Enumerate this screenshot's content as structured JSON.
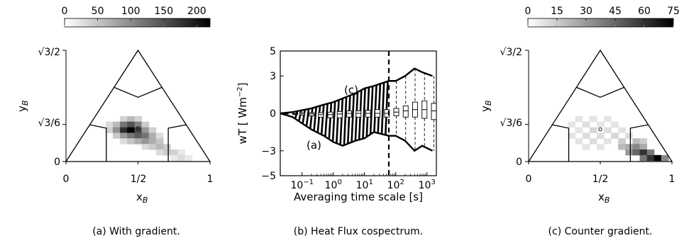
{
  "panels": [
    {
      "caption": "(a)  With gradient.",
      "colorbar_ticks": [
        "0",
        "50",
        "100",
        "150",
        "200"
      ],
      "colorbar_max": 220,
      "y_ticks": [
        "√3/2",
        "√3/6",
        "0"
      ],
      "x_ticks": [
        "0",
        "1/2",
        "1"
      ],
      "xlabel": "x",
      "xlabel_sub": "B",
      "ylabel": "y",
      "ylabel_sub": "B"
    },
    {
      "caption": "(b)  Heat Flux cospectrum.",
      "ylabel": "wT [ Wm",
      "ylabel_sup": "−2",
      "ylabel_end": "]",
      "xlabel": "Averaging time scale [s]",
      "annotation_a": "(a)",
      "annotation_c": "(c)"
    },
    {
      "caption": "(c)  Counter gradient.",
      "colorbar_ticks": [
        "0",
        "15",
        "30",
        "45",
        "60",
        "75"
      ],
      "colorbar_max": 75,
      "y_ticks": [
        "√3/2",
        "√3/6",
        "0"
      ],
      "x_ticks": [
        "0",
        "1/2",
        "1"
      ],
      "xlabel": "x",
      "xlabel_sub": "B",
      "ylabel": "y",
      "ylabel_sub": "B"
    }
  ],
  "chart_data": [
    {
      "type": "heatmap",
      "title": "With gradient",
      "domain": "barycentric triangle",
      "xlabel": "xB",
      "ylabel": "yB",
      "xlim": [
        0,
        1
      ],
      "ylim": [
        0,
        0.866
      ],
      "colorbar": {
        "min": 0,
        "max": 220,
        "ticks": [
          0,
          50,
          100,
          150,
          200
        ],
        "colormap": "white-to-black"
      },
      "cell_size": [
        0.05,
        0.0433
      ],
      "cells": [
        [
          0.4,
          0.332,
          40
        ],
        [
          0.45,
          0.332,
          60
        ],
        [
          0.5,
          0.332,
          40
        ],
        [
          0.3,
          0.289,
          30
        ],
        [
          0.35,
          0.289,
          60
        ],
        [
          0.4,
          0.289,
          120
        ],
        [
          0.45,
          0.289,
          150
        ],
        [
          0.5,
          0.289,
          110
        ],
        [
          0.55,
          0.289,
          45
        ],
        [
          0.3,
          0.245,
          40
        ],
        [
          0.35,
          0.245,
          95
        ],
        [
          0.4,
          0.245,
          180
        ],
        [
          0.45,
          0.245,
          220
        ],
        [
          0.5,
          0.245,
          160
        ],
        [
          0.55,
          0.245,
          90
        ],
        [
          0.6,
          0.245,
          40
        ],
        [
          0.35,
          0.202,
          45
        ],
        [
          0.4,
          0.202,
          90
        ],
        [
          0.45,
          0.202,
          120
        ],
        [
          0.5,
          0.202,
          140
        ],
        [
          0.55,
          0.202,
          120
        ],
        [
          0.6,
          0.202,
          70
        ],
        [
          0.65,
          0.202,
          30
        ],
        [
          0.4,
          0.159,
          30
        ],
        [
          0.45,
          0.159,
          50
        ],
        [
          0.5,
          0.159,
          70
        ],
        [
          0.55,
          0.159,
          90
        ],
        [
          0.6,
          0.159,
          70
        ],
        [
          0.65,
          0.159,
          50
        ],
        [
          0.55,
          0.115,
          30
        ],
        [
          0.6,
          0.115,
          45
        ],
        [
          0.65,
          0.115,
          60
        ],
        [
          0.7,
          0.115,
          45
        ],
        [
          0.65,
          0.072,
          30
        ],
        [
          0.7,
          0.072,
          45
        ],
        [
          0.75,
          0.072,
          40
        ],
        [
          0.8,
          0.072,
          20
        ],
        [
          0.75,
          0.029,
          20
        ],
        [
          0.8,
          0.029,
          30
        ],
        [
          0.85,
          0.029,
          20
        ]
      ],
      "marker": [
        0.5,
        0.26
      ],
      "region_boundaries": [
        [
          [
            0.333,
            0.577
          ],
          [
            0.5,
            0.5
          ],
          [
            0.667,
            0.577
          ]
        ],
        [
          [
            0.5,
            0.5
          ],
          [
            0.5,
            0.0
          ]
        ],
        [
          [
            0.333,
            0.289
          ],
          [
            0.5,
            0.5
          ]
        ],
        [
          [
            0.667,
            0.289
          ],
          [
            0.5,
            0.5
          ]
        ]
      ]
    },
    {
      "type": "line",
      "title": "Heat Flux cospectrum",
      "xlabel": "Averaging time scale [s]",
      "ylabel": "wT [ Wm−2 ]",
      "xscale": "log",
      "xlim": [
        0.02,
        2000
      ],
      "ylim": [
        -5,
        5
      ],
      "x_ticks": [
        "10^-1",
        "10^0",
        "10^1",
        "10^2",
        "10^3"
      ],
      "y_ticks": [
        5,
        3,
        0,
        -3,
        -5
      ],
      "vertical_line_x": 60,
      "upper_envelope": {
        "x": [
          0.02,
          0.05,
          0.1,
          0.2,
          0.5,
          1,
          2,
          5,
          10,
          20,
          60,
          100,
          200,
          400,
          700,
          1500
        ],
        "y": [
          0.0,
          0.1,
          0.25,
          0.4,
          0.7,
          0.9,
          1.2,
          1.6,
          2.0,
          2.2,
          2.6,
          2.6,
          3.0,
          3.6,
          3.3,
          3.0
        ]
      },
      "lower_envelope": {
        "x": [
          0.02,
          0.05,
          0.1,
          0.2,
          0.5,
          1,
          2,
          5,
          10,
          20,
          60,
          100,
          200,
          400,
          700,
          1500
        ],
        "y": [
          0.0,
          -0.3,
          -0.8,
          -1.3,
          -1.8,
          -2.3,
          -2.6,
          -2.2,
          -2.0,
          -1.5,
          -1.8,
          -1.8,
          -2.2,
          -3.0,
          -2.6,
          -3.0
        ]
      },
      "boxes": [
        {
          "x": 0.03,
          "q1": -0.05,
          "median": 0.0,
          "q3": 0.05,
          "lo": -0.1,
          "hi": 0.1
        },
        {
          "x": 0.06,
          "q1": -0.1,
          "median": -0.05,
          "q3": 0.0,
          "lo": -0.3,
          "hi": 0.1
        },
        {
          "x": 0.1,
          "q1": -0.15,
          "median": -0.05,
          "q3": 0.05,
          "lo": -0.8,
          "hi": 0.25
        },
        {
          "x": 0.2,
          "q1": -0.2,
          "median": -0.05,
          "q3": 0.05,
          "lo": -1.3,
          "hi": 0.4
        },
        {
          "x": 0.4,
          "q1": -0.3,
          "median": -0.1,
          "q3": 0.05,
          "lo": -1.8,
          "hi": 0.6
        },
        {
          "x": 0.8,
          "q1": -0.35,
          "median": -0.1,
          "q3": 0.1,
          "lo": -2.2,
          "hi": 0.85
        },
        {
          "x": 1.6,
          "q1": -0.35,
          "median": -0.05,
          "q3": 0.15,
          "lo": -2.6,
          "hi": 1.1
        },
        {
          "x": 3.2,
          "q1": -0.3,
          "median": 0.0,
          "q3": 0.2,
          "lo": -2.3,
          "hi": 1.5
        },
        {
          "x": 6.4,
          "q1": -0.3,
          "median": 0.0,
          "q3": 0.2,
          "lo": -2.1,
          "hi": 1.9
        },
        {
          "x": 13,
          "q1": -0.3,
          "median": 0.0,
          "q3": 0.25,
          "lo": -1.8,
          "hi": 2.1
        },
        {
          "x": 26,
          "q1": -0.3,
          "median": 0.0,
          "q3": 0.3,
          "lo": -1.6,
          "hi": 2.3
        },
        {
          "x": 52,
          "q1": -0.3,
          "median": 0.0,
          "q3": 0.3,
          "lo": -1.7,
          "hi": 2.5
        },
        {
          "x": 104,
          "q1": -0.2,
          "median": 0.1,
          "q3": 0.4,
          "lo": -1.8,
          "hi": 2.6
        },
        {
          "x": 208,
          "q1": -0.3,
          "median": 0.2,
          "q3": 0.6,
          "lo": -2.2,
          "hi": 3.0
        },
        {
          "x": 416,
          "q1": -0.3,
          "median": 0.3,
          "q3": 0.9,
          "lo": -3.0,
          "hi": 3.6
        },
        {
          "x": 832,
          "q1": -0.4,
          "median": 0.3,
          "q3": 1.0,
          "lo": -2.6,
          "hi": 3.3
        },
        {
          "x": 1664,
          "q1": -0.5,
          "median": 0.2,
          "q3": 0.8,
          "lo": -3.0,
          "hi": 3.0
        }
      ]
    },
    {
      "type": "heatmap",
      "title": "Counter gradient",
      "domain": "barycentric triangle",
      "xlabel": "xB",
      "ylabel": "yB",
      "xlim": [
        0,
        1
      ],
      "ylim": [
        0,
        0.866
      ],
      "colorbar": {
        "min": 0,
        "max": 75,
        "ticks": [
          0,
          15,
          30,
          45,
          60,
          75
        ],
        "colormap": "white-to-black"
      },
      "cell_size": [
        0.05,
        0.0433
      ],
      "cells": [
        [
          0.35,
          0.332,
          8
        ],
        [
          0.45,
          0.332,
          8
        ],
        [
          0.55,
          0.332,
          8
        ],
        [
          0.3,
          0.289,
          8
        ],
        [
          0.4,
          0.289,
          10
        ],
        [
          0.5,
          0.289,
          8
        ],
        [
          0.6,
          0.289,
          8
        ],
        [
          0.35,
          0.245,
          8
        ],
        [
          0.45,
          0.245,
          12
        ],
        [
          0.55,
          0.245,
          10
        ],
        [
          0.65,
          0.245,
          8
        ],
        [
          0.3,
          0.202,
          8
        ],
        [
          0.4,
          0.202,
          10
        ],
        [
          0.5,
          0.202,
          10
        ],
        [
          0.6,
          0.202,
          12
        ],
        [
          0.7,
          0.202,
          10
        ],
        [
          0.35,
          0.159,
          8
        ],
        [
          0.45,
          0.159,
          10
        ],
        [
          0.55,
          0.159,
          8
        ],
        [
          0.65,
          0.159,
          15
        ],
        [
          0.75,
          0.159,
          20
        ],
        [
          0.8,
          0.159,
          15
        ],
        [
          0.4,
          0.115,
          8
        ],
        [
          0.5,
          0.115,
          8
        ],
        [
          0.65,
          0.115,
          20
        ],
        [
          0.7,
          0.115,
          25
        ],
        [
          0.75,
          0.115,
          35
        ],
        [
          0.8,
          0.115,
          25
        ],
        [
          0.7,
          0.072,
          30
        ],
        [
          0.75,
          0.072,
          45
        ],
        [
          0.8,
          0.072,
          60
        ],
        [
          0.85,
          0.072,
          40
        ],
        [
          0.8,
          0.029,
          40
        ],
        [
          0.85,
          0.029,
          60
        ],
        [
          0.9,
          0.029,
          75
        ],
        [
          0.95,
          0.029,
          35
        ]
      ],
      "marker": [
        0.5,
        0.25
      ],
      "region_boundaries": [
        [
          [
            0.333,
            0.577
          ],
          [
            0.5,
            0.5
          ],
          [
            0.667,
            0.577
          ]
        ],
        [
          [
            0.5,
            0.5
          ],
          [
            0.5,
            0.0
          ]
        ],
        [
          [
            0.333,
            0.289
          ],
          [
            0.5,
            0.5
          ]
        ],
        [
          [
            0.667,
            0.289
          ],
          [
            0.5,
            0.5
          ]
        ]
      ]
    }
  ]
}
